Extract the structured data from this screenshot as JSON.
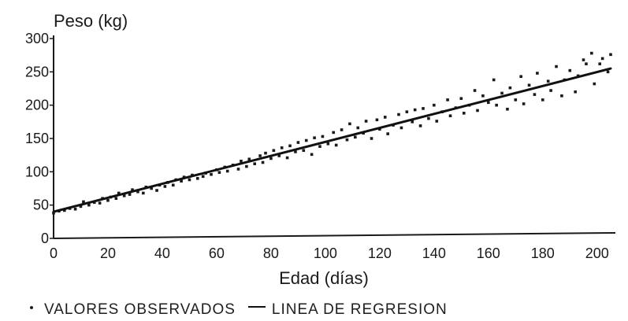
{
  "chart_data": {
    "type": "scatter",
    "ylabel": "Peso (kg)",
    "xlabel": "Edad (días)",
    "xlim": [
      0,
      205
    ],
    "ylim": [
      0,
      300
    ],
    "x_ticks": [
      0,
      20,
      40,
      60,
      80,
      100,
      120,
      140,
      160,
      180,
      200
    ],
    "y_ticks": [
      0,
      50,
      100,
      150,
      200,
      250,
      300
    ],
    "grid": false,
    "legend_position": "bottom",
    "series": [
      {
        "name": "VALORES OBSERVADOS",
        "kind": "scatter",
        "points": [
          [
            0,
            38
          ],
          [
            2,
            41
          ],
          [
            4,
            42
          ],
          [
            6,
            45
          ],
          [
            8,
            44
          ],
          [
            10,
            48
          ],
          [
            11,
            55
          ],
          [
            13,
            50
          ],
          [
            15,
            54
          ],
          [
            17,
            53
          ],
          [
            18,
            60
          ],
          [
            20,
            57
          ],
          [
            21,
            62
          ],
          [
            23,
            60
          ],
          [
            24,
            68
          ],
          [
            26,
            64
          ],
          [
            28,
            66
          ],
          [
            29,
            73
          ],
          [
            31,
            70
          ],
          [
            33,
            68
          ],
          [
            34,
            77
          ],
          [
            36,
            75
          ],
          [
            38,
            72
          ],
          [
            39,
            80
          ],
          [
            41,
            78
          ],
          [
            42,
            84
          ],
          [
            44,
            80
          ],
          [
            45,
            88
          ],
          [
            47,
            86
          ],
          [
            48,
            92
          ],
          [
            50,
            88
          ],
          [
            51,
            95
          ],
          [
            53,
            90
          ],
          [
            55,
            93
          ],
          [
            56,
            98
          ],
          [
            58,
            96
          ],
          [
            60,
            103
          ],
          [
            61,
            99
          ],
          [
            63,
            107
          ],
          [
            64,
            101
          ],
          [
            66,
            110
          ],
          [
            68,
            104
          ],
          [
            69,
            116
          ],
          [
            71,
            108
          ],
          [
            72,
            119
          ],
          [
            74,
            112
          ],
          [
            76,
            124
          ],
          [
            77,
            114
          ],
          [
            78,
            128
          ],
          [
            80,
            120
          ],
          [
            81,
            132
          ],
          [
            83,
            124
          ],
          [
            84,
            136
          ],
          [
            86,
            121
          ],
          [
            87,
            139
          ],
          [
            89,
            130
          ],
          [
            90,
            144
          ],
          [
            92,
            132
          ],
          [
            93,
            147
          ],
          [
            95,
            126
          ],
          [
            96,
            151
          ],
          [
            98,
            138
          ],
          [
            99,
            153
          ],
          [
            101,
            142
          ],
          [
            103,
            159
          ],
          [
            104,
            140
          ],
          [
            106,
            163
          ],
          [
            108,
            148
          ],
          [
            109,
            172
          ],
          [
            111,
            152
          ],
          [
            112,
            166
          ],
          [
            114,
            158
          ],
          [
            115,
            176
          ],
          [
            117,
            150
          ],
          [
            119,
            178
          ],
          [
            120,
            164
          ],
          [
            122,
            182
          ],
          [
            123,
            157
          ],
          [
            125,
            170
          ],
          [
            127,
            186
          ],
          [
            128,
            166
          ],
          [
            130,
            190
          ],
          [
            132,
            175
          ],
          [
            133,
            193
          ],
          [
            135,
            169
          ],
          [
            136,
            195
          ],
          [
            138,
            180
          ],
          [
            140,
            200
          ],
          [
            141,
            176
          ],
          [
            143,
            190
          ],
          [
            145,
            208
          ],
          [
            146,
            184
          ],
          [
            148,
            196
          ],
          [
            150,
            210
          ],
          [
            151,
            188
          ],
          [
            153,
            200
          ],
          [
            155,
            222
          ],
          [
            156,
            192
          ],
          [
            158,
            214
          ],
          [
            160,
            204
          ],
          [
            162,
            238
          ],
          [
            163,
            200
          ],
          [
            165,
            218
          ],
          [
            167,
            194
          ],
          [
            168,
            226
          ],
          [
            170,
            208
          ],
          [
            172,
            243
          ],
          [
            173,
            202
          ],
          [
            175,
            230
          ],
          [
            177,
            216
          ],
          [
            178,
            248
          ],
          [
            180,
            208
          ],
          [
            182,
            236
          ],
          [
            183,
            222
          ],
          [
            185,
            258
          ],
          [
            187,
            214
          ],
          [
            188,
            238
          ],
          [
            190,
            252
          ],
          [
            192,
            220
          ],
          [
            193,
            244
          ],
          [
            195,
            268
          ],
          [
            196,
            262
          ],
          [
            198,
            278
          ],
          [
            199,
            232
          ],
          [
            201,
            262
          ],
          [
            202,
            270
          ],
          [
            204,
            250
          ],
          [
            205,
            276
          ]
        ]
      },
      {
        "name": "LINEA DE REGRESION",
        "kind": "line",
        "x": [
          0,
          205
        ],
        "y": [
          40,
          255
        ]
      }
    ]
  },
  "legend": {
    "observed_label": "VALORES OBSERVADOS",
    "regression_label": "LINEA DE REGRESION"
  },
  "colors": {
    "ink": "#1a1a1a",
    "background": "#ffffff"
  }
}
